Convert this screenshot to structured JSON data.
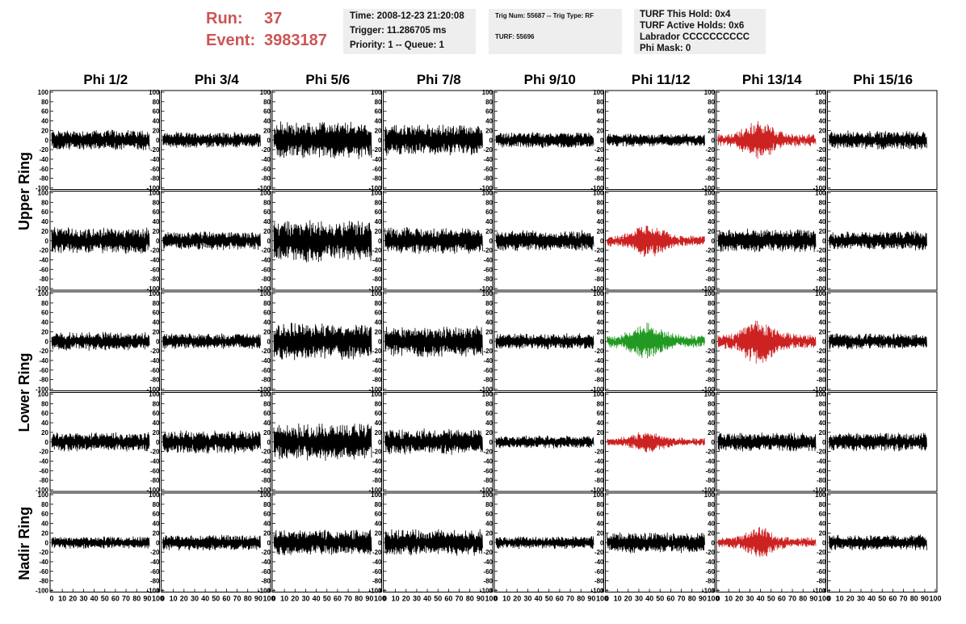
{
  "header": {
    "run_label": "Run:",
    "run_value": "37",
    "event_label": "Event:",
    "event_value": "3983187",
    "time": "Time: 2008-12-23 21:20:08",
    "trigger": "Trigger: 11.286705 ms",
    "priority": "Priority: 1 -- Queue: 1",
    "trig_num": "Trig Num: 55687 -- Trig Type: RF",
    "turf": "TURF: 55696",
    "turf_this_hold": "TURF This Hold: 0x4",
    "turf_active_holds": "TURF Active Holds: 0x6",
    "labrador": "Labrador CCCCCCCCCC",
    "phi_mask": "Phi Mask: 0"
  },
  "chart_data": {
    "type": "line",
    "columns": [
      "Phi 1/2",
      "Phi 3/4",
      "Phi 5/6",
      "Phi 7/8",
      "Phi 9/10",
      "Phi 11/12",
      "Phi 13/14",
      "Phi 15/16"
    ],
    "row_groups": [
      {
        "label": "Upper Ring",
        "rows": [
          0,
          1
        ]
      },
      {
        "label": "Lower Ring",
        "rows": [
          2,
          3
        ]
      },
      {
        "label": "Nadir Ring",
        "rows": [
          4
        ]
      }
    ],
    "xlim": [
      0,
      100
    ],
    "ylim": [
      -100,
      100
    ],
    "x_ticks": [
      "0",
      "10",
      "20",
      "30",
      "40",
      "50",
      "60",
      "70",
      "80",
      "90",
      "100"
    ],
    "y_ticks": [
      "100",
      "80",
      "60",
      "40",
      "20",
      "0",
      "-20",
      "-40",
      "-60",
      "-80",
      "-100"
    ],
    "samples_per_trace": 260,
    "x_max_sample": 92,
    "colors": {
      "normal": "#000000",
      "triggered": "#cc2222",
      "triggered_green": "#229922"
    },
    "amplitudes": [
      [
        20,
        15,
        35,
        30,
        15,
        12,
        25,
        18
      ],
      [
        25,
        18,
        40,
        25,
        20,
        22,
        22,
        18
      ],
      [
        18,
        15,
        35,
        30,
        15,
        25,
        30,
        15
      ],
      [
        18,
        22,
        35,
        25,
        12,
        15,
        18,
        18
      ],
      [
        12,
        15,
        25,
        25,
        12,
        20,
        20,
        15
      ]
    ],
    "highlight": [
      [
        0,
        0,
        0,
        0,
        0,
        0,
        1,
        0
      ],
      [
        0,
        0,
        0,
        0,
        0,
        1,
        0,
        0
      ],
      [
        0,
        0,
        0,
        0,
        0,
        2,
        1,
        0
      ],
      [
        0,
        0,
        0,
        0,
        0,
        1,
        0,
        0
      ],
      [
        0,
        0,
        0,
        0,
        0,
        0,
        1,
        0
      ]
    ]
  }
}
